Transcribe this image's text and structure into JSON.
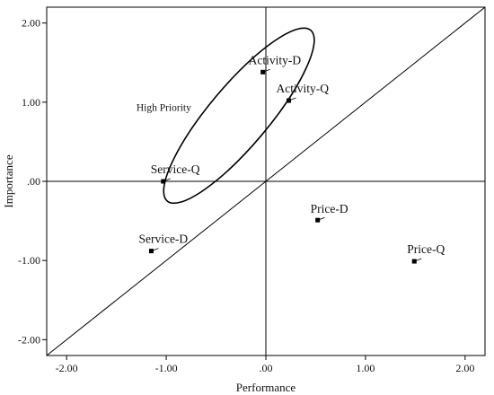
{
  "chart_data": {
    "type": "scatter",
    "title": "",
    "xlabel": "Performance",
    "ylabel": "Importance",
    "xlim": [
      -2.2,
      2.2
    ],
    "ylim": [
      -2.2,
      2.2
    ],
    "x_ticks": [
      -2,
      -1,
      0,
      1,
      2
    ],
    "x_tick_labels": [
      "-2.00",
      "-1.00",
      ".00",
      "1.00",
      "2.00"
    ],
    "y_ticks": [
      -2,
      -1,
      0,
      1,
      2
    ],
    "y_tick_labels": [
      "-2.00",
      "-1.00",
      ".00",
      "1.00",
      "2.00"
    ],
    "grid": false,
    "reference_lines": {
      "x_zero": true,
      "y_zero": true,
      "diagonal": true
    },
    "points": [
      {
        "label": "Activity-D",
        "x": -0.03,
        "y": 1.38
      },
      {
        "label": "Activity-Q",
        "x": 0.23,
        "y": 1.02
      },
      {
        "label": "Service-Q",
        "x": -1.03,
        "y": 0.0
      },
      {
        "label": "Service-D",
        "x": -1.15,
        "y": -0.88
      },
      {
        "label": "Price-D",
        "x": 0.52,
        "y": -0.49
      },
      {
        "label": "Price-Q",
        "x": 1.49,
        "y": -1.01
      }
    ],
    "annotations": [
      {
        "label": "High Priority",
        "shape": "ellipse",
        "center": [
          -0.27,
          0.83
        ],
        "rx": 1.12,
        "ry": 0.3,
        "rotation_deg": -50
      }
    ],
    "colors": {
      "marker": "#000000",
      "axis": "#000000"
    }
  }
}
